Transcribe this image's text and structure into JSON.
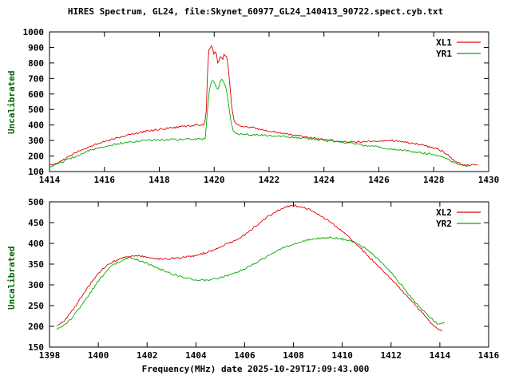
{
  "figure": {
    "title": "HIRES Spectrum, GL24, file:Skynet_60977_GL24_140413_90722.spect.cyb.txt",
    "xlabel": "Frequency(MHz) date 2025-10-29T17:09:43.000",
    "background": "#ffffff",
    "axis_color": "#000000",
    "ylabel_color": "#006400"
  },
  "chart_data": [
    {
      "type": "line",
      "ylabel": "Uncalibrated",
      "xlim": [
        1414,
        1430
      ],
      "ylim": [
        100,
        1000
      ],
      "xtick_step": 2,
      "ytick_step": 100,
      "grid": false,
      "legend_position": "top-right",
      "series": [
        {
          "name": "XL1",
          "color": "#dd0000",
          "points": [
            [
              1414.0,
              140
            ],
            [
              1414.3,
              152
            ],
            [
              1414.6,
              185
            ],
            [
              1415.0,
              228
            ],
            [
              1415.5,
              263
            ],
            [
              1416.0,
              293
            ],
            [
              1416.5,
              318
            ],
            [
              1417.0,
              342
            ],
            [
              1417.5,
              358
            ],
            [
              1418.0,
              372
            ],
            [
              1418.5,
              383
            ],
            [
              1419.0,
              393
            ],
            [
              1419.4,
              399
            ],
            [
              1419.65,
              404
            ],
            [
              1419.72,
              500
            ],
            [
              1419.78,
              870
            ],
            [
              1419.85,
              900
            ],
            [
              1419.92,
              912
            ],
            [
              1420.0,
              845
            ],
            [
              1420.06,
              880
            ],
            [
              1420.14,
              790
            ],
            [
              1420.22,
              845
            ],
            [
              1420.3,
              820
            ],
            [
              1420.38,
              858
            ],
            [
              1420.46,
              835
            ],
            [
              1420.52,
              760
            ],
            [
              1420.58,
              640
            ],
            [
              1420.64,
              520
            ],
            [
              1420.72,
              430
            ],
            [
              1420.8,
              405
            ],
            [
              1421.0,
              396
            ],
            [
              1421.5,
              380
            ],
            [
              1422.0,
              362
            ],
            [
              1422.5,
              346
            ],
            [
              1423.0,
              331
            ],
            [
              1423.5,
              318
            ],
            [
              1424.0,
              306
            ],
            [
              1424.5,
              297
            ],
            [
              1425.0,
              291
            ],
            [
              1425.5,
              293
            ],
            [
              1426.0,
              299
            ],
            [
              1426.4,
              301
            ],
            [
              1426.8,
              294
            ],
            [
              1427.2,
              283
            ],
            [
              1427.6,
              269
            ],
            [
              1428.0,
              253
            ],
            [
              1428.3,
              233
            ],
            [
              1428.6,
              196
            ],
            [
              1428.85,
              158
            ],
            [
              1429.05,
              143
            ],
            [
              1429.3,
              140
            ],
            [
              1429.6,
              141
            ]
          ]
        },
        {
          "name": "YR1",
          "color": "#00aa00",
          "points": [
            [
              1414.0,
              128
            ],
            [
              1414.5,
              163
            ],
            [
              1415.0,
              203
            ],
            [
              1415.5,
              238
            ],
            [
              1416.0,
              263
            ],
            [
              1416.5,
              281
            ],
            [
              1417.0,
              293
            ],
            [
              1417.5,
              300
            ],
            [
              1418.0,
              304
            ],
            [
              1418.5,
              306
            ],
            [
              1419.0,
              307
            ],
            [
              1419.4,
              309
            ],
            [
              1419.68,
              313
            ],
            [
              1419.75,
              480
            ],
            [
              1419.82,
              620
            ],
            [
              1419.9,
              680
            ],
            [
              1419.97,
              695
            ],
            [
              1420.05,
              655
            ],
            [
              1420.13,
              625
            ],
            [
              1420.2,
              668
            ],
            [
              1420.28,
              697
            ],
            [
              1420.36,
              672
            ],
            [
              1420.44,
              635
            ],
            [
              1420.52,
              540
            ],
            [
              1420.6,
              430
            ],
            [
              1420.68,
              368
            ],
            [
              1420.78,
              344
            ],
            [
              1421.0,
              340
            ],
            [
              1421.5,
              337
            ],
            [
              1422.0,
              332
            ],
            [
              1422.5,
              326
            ],
            [
              1423.0,
              319
            ],
            [
              1423.5,
              311
            ],
            [
              1424.0,
              301
            ],
            [
              1424.5,
              291
            ],
            [
              1425.0,
              280
            ],
            [
              1425.5,
              268
            ],
            [
              1426.0,
              257
            ],
            [
              1426.5,
              245
            ],
            [
              1427.0,
              234
            ],
            [
              1427.5,
              222
            ],
            [
              1428.0,
              210
            ],
            [
              1428.3,
              198
            ],
            [
              1428.55,
              175
            ],
            [
              1428.8,
              152
            ],
            [
              1429.0,
              141
            ],
            [
              1429.3,
              138
            ]
          ]
        }
      ]
    },
    {
      "type": "line",
      "ylabel": "Uncalibrated",
      "xlim": [
        1398,
        1416
      ],
      "ylim": [
        150,
        500
      ],
      "xtick_step": 2,
      "ytick_step": 50,
      "grid": false,
      "legend_position": "top-right",
      "series": [
        {
          "name": "XL2",
          "color": "#dd0000",
          "points": [
            [
              1398.3,
              200
            ],
            [
              1398.6,
              213
            ],
            [
              1399.0,
              243
            ],
            [
              1399.5,
              288
            ],
            [
              1400.0,
              328
            ],
            [
              1400.5,
              353
            ],
            [
              1401.0,
              366
            ],
            [
              1401.4,
              370
            ],
            [
              1401.8,
              368
            ],
            [
              1402.2,
              364
            ],
            [
              1402.6,
              362
            ],
            [
              1403.0,
              363
            ],
            [
              1403.5,
              366
            ],
            [
              1404.0,
              371
            ],
            [
              1404.5,
              379
            ],
            [
              1405.0,
              391
            ],
            [
              1405.5,
              404
            ],
            [
              1406.0,
              421
            ],
            [
              1406.5,
              443
            ],
            [
              1407.0,
              466
            ],
            [
              1407.5,
              484
            ],
            [
              1407.9,
              492
            ],
            [
              1408.3,
              489
            ],
            [
              1408.7,
              480
            ],
            [
              1409.0,
              470
            ],
            [
              1409.5,
              452
            ],
            [
              1410.0,
              429
            ],
            [
              1410.5,
              403
            ],
            [
              1411.0,
              373
            ],
            [
              1411.5,
              344
            ],
            [
              1412.0,
              314
            ],
            [
              1412.5,
              283
            ],
            [
              1413.0,
              251
            ],
            [
              1413.4,
              224
            ],
            [
              1413.8,
              199
            ],
            [
              1414.1,
              189
            ]
          ]
        },
        {
          "name": "YR2",
          "color": "#00aa00",
          "points": [
            [
              1398.3,
              193
            ],
            [
              1398.7,
              207
            ],
            [
              1399.0,
              226
            ],
            [
              1399.5,
              266
            ],
            [
              1400.0,
              309
            ],
            [
              1400.5,
              344
            ],
            [
              1401.0,
              361
            ],
            [
              1401.3,
              365
            ],
            [
              1401.7,
              359
            ],
            [
              1402.0,
              351
            ],
            [
              1402.5,
              339
            ],
            [
              1403.0,
              327
            ],
            [
              1403.5,
              317
            ],
            [
              1404.0,
              312
            ],
            [
              1404.5,
              311
            ],
            [
              1405.0,
              317
            ],
            [
              1405.5,
              327
            ],
            [
              1406.0,
              339
            ],
            [
              1406.5,
              354
            ],
            [
              1407.0,
              371
            ],
            [
              1407.5,
              387
            ],
            [
              1408.0,
              399
            ],
            [
              1408.5,
              407
            ],
            [
              1409.0,
              412
            ],
            [
              1409.5,
              414
            ],
            [
              1410.0,
              411
            ],
            [
              1410.5,
              403
            ],
            [
              1411.0,
              387
            ],
            [
              1411.5,
              361
            ],
            [
              1412.0,
              329
            ],
            [
              1412.5,
              294
            ],
            [
              1413.0,
              257
            ],
            [
              1413.5,
              227
            ],
            [
              1413.9,
              206
            ],
            [
              1414.2,
              208
            ]
          ]
        }
      ]
    }
  ]
}
